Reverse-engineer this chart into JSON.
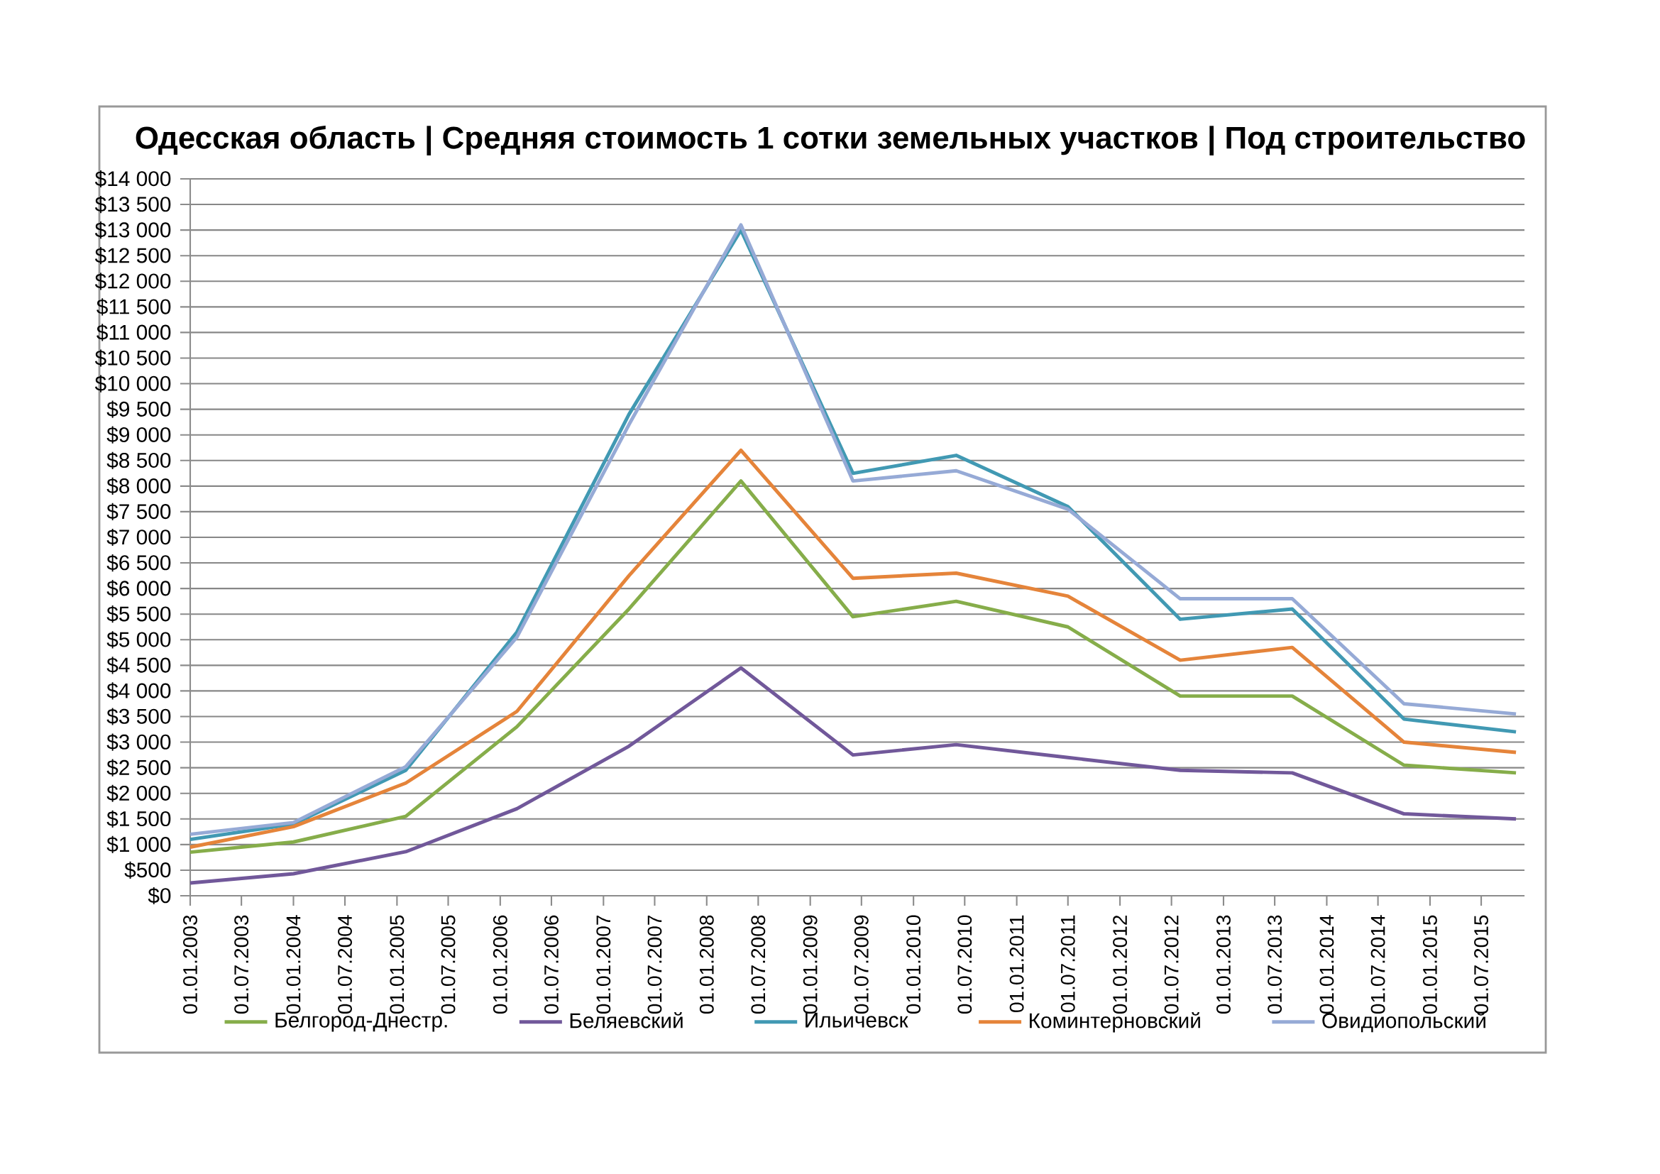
{
  "chart_data": {
    "type": "line",
    "title": "Одесская область | Средняя стоимость 1 сотки земельных участков | Под строительство",
    "x": [
      "2003-01-01",
      "2004-01-01",
      "2005-02-01",
      "2006-03-01",
      "2007-04-01",
      "2008-05-01",
      "2009-06-01",
      "2010-06-01",
      "2011-07-01",
      "2012-08-01",
      "2013-09-01",
      "2014-10-01",
      "2015-11-01"
    ],
    "series": [
      {
        "name": "Белгород-Днестр.",
        "color": "#86ad4a",
        "values": [
          850,
          1050,
          1550,
          3300,
          5600,
          8100,
          5450,
          5750,
          5250,
          3900,
          3900,
          2550,
          2400
        ]
      },
      {
        "name": "Беляевский",
        "color": "#71589a",
        "values": [
          250,
          430,
          860,
          1700,
          2920,
          4450,
          2750,
          2950,
          2700,
          2450,
          2400,
          1600,
          1500
        ]
      },
      {
        "name": "Ильичевск",
        "color": "#4199b3",
        "values": [
          1100,
          1400,
          2450,
          5150,
          9400,
          13000,
          8250,
          8600,
          7600,
          5400,
          5600,
          3450,
          3200
        ]
      },
      {
        "name": "Коминтерновский",
        "color": "#e5843a",
        "values": [
          950,
          1350,
          2200,
          3600,
          6250,
          8700,
          6200,
          6300,
          5850,
          4600,
          4850,
          3000,
          2800
        ]
      },
      {
        "name": "Овидиопольский",
        "color": "#96aad6",
        "values": [
          1200,
          1430,
          2520,
          5050,
          9200,
          13100,
          8100,
          8300,
          7550,
          5800,
          5800,
          3750,
          3550
        ]
      }
    ],
    "xlim": [
      "2003-01-01",
      "2015-12-01"
    ],
    "xticks": [
      {
        "value": "2003-01-01",
        "label": "01.01.2003"
      },
      {
        "value": "2003-07-01",
        "label": "01.07.2003"
      },
      {
        "value": "2004-01-01",
        "label": "01.01.2004"
      },
      {
        "value": "2004-07-01",
        "label": "01.07.2004"
      },
      {
        "value": "2005-01-01",
        "label": "01.01.2005"
      },
      {
        "value": "2005-07-01",
        "label": "01.07.2005"
      },
      {
        "value": "2006-01-01",
        "label": "01.01.2006"
      },
      {
        "value": "2006-07-01",
        "label": "01.07.2006"
      },
      {
        "value": "2007-01-01",
        "label": "01.01.2007"
      },
      {
        "value": "2007-07-01",
        "label": "01.07.2007"
      },
      {
        "value": "2008-01-01",
        "label": "01.01.2008"
      },
      {
        "value": "2008-07-01",
        "label": "01.07.2008"
      },
      {
        "value": "2009-01-01",
        "label": "01.01.2009"
      },
      {
        "value": "2009-07-01",
        "label": "01.07.2009"
      },
      {
        "value": "2010-01-01",
        "label": "01.01.2010"
      },
      {
        "value": "2010-07-01",
        "label": "01.07.2010"
      },
      {
        "value": "2011-01-01",
        "label": "01.01.2011"
      },
      {
        "value": "2011-07-01",
        "label": "01.07.2011"
      },
      {
        "value": "2012-01-01",
        "label": "01.01.2012"
      },
      {
        "value": "2012-07-01",
        "label": "01.07.2012"
      },
      {
        "value": "2013-01-01",
        "label": "01.01.2013"
      },
      {
        "value": "2013-07-01",
        "label": "01.07.2013"
      },
      {
        "value": "2014-01-01",
        "label": "01.01.2014"
      },
      {
        "value": "2014-07-01",
        "label": "01.07.2014"
      },
      {
        "value": "2015-01-01",
        "label": "01.01.2015"
      },
      {
        "value": "2015-07-01",
        "label": "01.07.2015"
      }
    ],
    "ylim": [
      0,
      14000
    ],
    "yticks": [
      {
        "value": 0,
        "label": "$0"
      },
      {
        "value": 500,
        "label": "$500"
      },
      {
        "value": 1000,
        "label": "$1 000"
      },
      {
        "value": 1500,
        "label": "$1 500"
      },
      {
        "value": 2000,
        "label": "$2 000"
      },
      {
        "value": 2500,
        "label": "$2 500"
      },
      {
        "value": 3000,
        "label": "$3 000"
      },
      {
        "value": 3500,
        "label": "$3 500"
      },
      {
        "value": 4000,
        "label": "$4 000"
      },
      {
        "value": 4500,
        "label": "$4 500"
      },
      {
        "value": 5000,
        "label": "$5 000"
      },
      {
        "value": 5500,
        "label": "$5 500"
      },
      {
        "value": 6000,
        "label": "$6 000"
      },
      {
        "value": 6500,
        "label": "$6 500"
      },
      {
        "value": 7000,
        "label": "$7 000"
      },
      {
        "value": 7500,
        "label": "$7 500"
      },
      {
        "value": 8000,
        "label": "$8 000"
      },
      {
        "value": 8500,
        "label": "$8 500"
      },
      {
        "value": 9000,
        "label": "$9 000"
      },
      {
        "value": 9500,
        "label": "$9 500"
      },
      {
        "value": 10000,
        "label": "$10 000"
      },
      {
        "value": 10500,
        "label": "$10 500"
      },
      {
        "value": 11000,
        "label": "$11 000"
      },
      {
        "value": 11500,
        "label": "$11 500"
      },
      {
        "value": 12000,
        "label": "$12 000"
      },
      {
        "value": 12500,
        "label": "$12 500"
      },
      {
        "value": 13000,
        "label": "$13 000"
      },
      {
        "value": 13500,
        "label": "$13 500"
      },
      {
        "value": 14000,
        "label": "$14 000"
      }
    ],
    "grid": "y",
    "legend": "bottom",
    "marker": "none",
    "line_style": "solid"
  }
}
